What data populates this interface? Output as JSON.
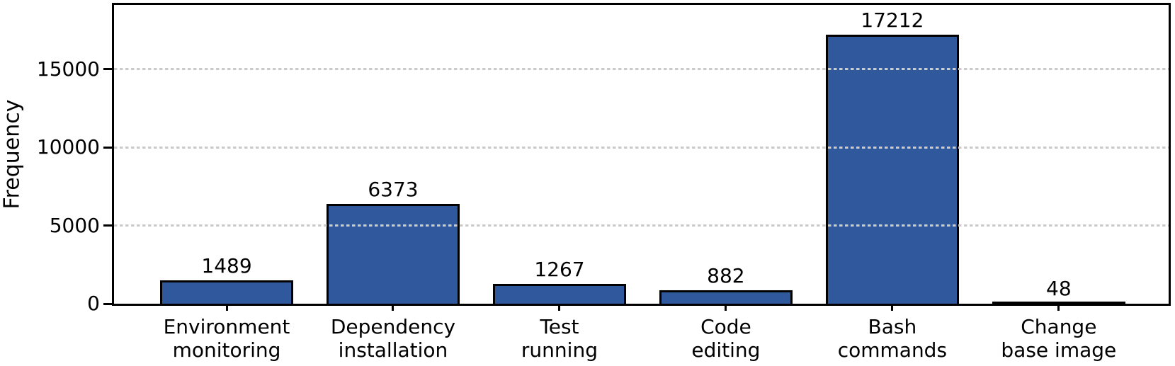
{
  "chart_data": {
    "type": "bar",
    "title": "",
    "xlabel": "",
    "ylabel": "Frequency",
    "categories": [
      "Environment\nmonitoring",
      "Dependency\ninstallation",
      "Test\nrunning",
      "Code\nediting",
      "Bash\ncommands",
      "Change\nbase image"
    ],
    "values": [
      1489,
      6373,
      1267,
      882,
      17212,
      48
    ],
    "bar_labels": [
      "1489",
      "6373",
      "1267",
      "882",
      "17212",
      "48"
    ],
    "yticks": [
      0,
      5000,
      10000,
      15000
    ],
    "ytick_labels": [
      "0",
      "5000",
      "10000",
      "15000"
    ],
    "ylim": [
      0,
      19100
    ],
    "grid": {
      "axis": "y",
      "style": "dashed",
      "color": "#cbcbcb"
    },
    "legend": "none",
    "colors": {
      "bar_fill": "#2F599C",
      "bar_edge": "#000000",
      "grid": "#cbcbcb",
      "text": "#000000",
      "background": "#ffffff"
    }
  }
}
